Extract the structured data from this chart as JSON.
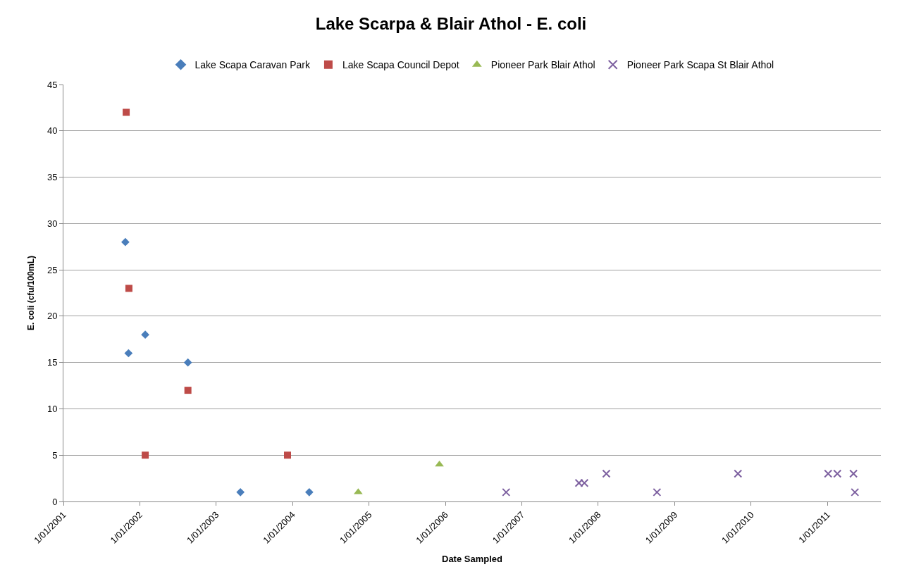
{
  "chart_data": {
    "type": "scatter",
    "title": "Lake Scarpa & Blair Athol - E. coli",
    "xlabel": "Date Sampled",
    "ylabel": "E. coli (cfu/100mL)",
    "xlim": [
      "2001-01-01",
      "2011-09-13"
    ],
    "xticks": [
      {
        "value": "2001-01-01",
        "label": "1/01/2001"
      },
      {
        "value": "2002-01-01",
        "label": "1/01/2002"
      },
      {
        "value": "2003-01-01",
        "label": "1/01/2003"
      },
      {
        "value": "2004-01-01",
        "label": "1/01/2004"
      },
      {
        "value": "2005-01-01",
        "label": "1/01/2005"
      },
      {
        "value": "2006-01-01",
        "label": "1/01/2006"
      },
      {
        "value": "2007-01-01",
        "label": "1/01/2007"
      },
      {
        "value": "2008-01-01",
        "label": "1/01/2008"
      },
      {
        "value": "2009-01-01",
        "label": "1/01/2009"
      },
      {
        "value": "2010-01-01",
        "label": "1/01/2010"
      },
      {
        "value": "2011-01-01",
        "label": "1/01/2011"
      }
    ],
    "ylim": [
      0,
      45
    ],
    "yticks": [
      0,
      5,
      10,
      15,
      20,
      25,
      30,
      35,
      40,
      45
    ],
    "grid": "y",
    "legend": "top",
    "series": [
      {
        "name": "Lake Scapa Caravan Park",
        "color": "#4a7ebb",
        "marker": "diamond",
        "x": [
          "2001-10-24",
          "2001-11-08",
          "2002-01-27",
          "2002-08-19",
          "2003-04-27",
          "2004-03-21"
        ],
        "values": [
          28,
          16,
          18,
          15,
          1,
          1
        ]
      },
      {
        "name": "Lake Scapa Council Depot",
        "color": "#be4b48",
        "marker": "square",
        "x": [
          "2001-10-28",
          "2001-11-10",
          "2002-01-27",
          "2002-08-19",
          "2003-12-08"
        ],
        "values": [
          42,
          23,
          5,
          12,
          5
        ]
      },
      {
        "name": "Pioneer Park Blair Athol",
        "color": "#98b954",
        "marker": "triangle",
        "x": [
          "2004-11-10",
          "2005-12-03"
        ],
        "values": [
          1,
          4
        ]
      },
      {
        "name": "Pioneer Park Scapa St Blair Athol",
        "color": "#7d60a0",
        "marker": "cross",
        "x": [
          "2006-10-18",
          "2007-10-01",
          "2007-10-27",
          "2008-02-09",
          "2008-10-08",
          "2009-10-30",
          "2011-01-04",
          "2011-02-17",
          "2011-05-05",
          "2011-05-12"
        ],
        "values": [
          1,
          2,
          2,
          3,
          1,
          3,
          3,
          3,
          3,
          1
        ]
      }
    ]
  }
}
